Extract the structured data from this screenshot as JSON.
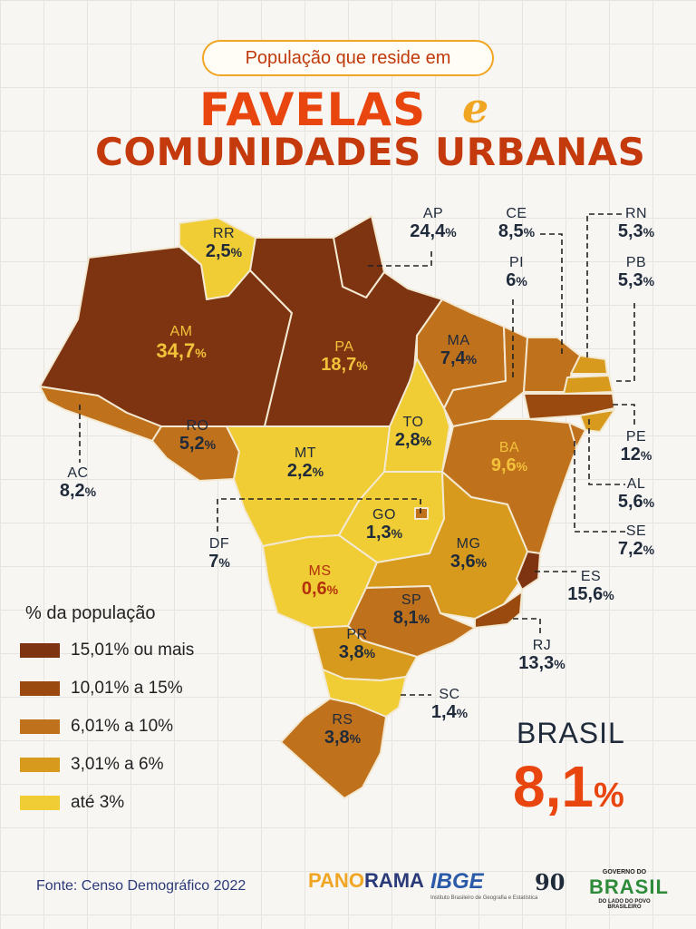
{
  "header": {
    "pre_title": "População que reside em",
    "title_line1": "FAVELAS",
    "title_connector": "e",
    "title_line2": "COMUNIDADES URBANAS"
  },
  "states": {
    "RR": {
      "code": "RR",
      "value": "2,5"
    },
    "AM": {
      "code": "AM",
      "value": "34,7"
    },
    "PA": {
      "code": "PA",
      "value": "18,7"
    },
    "AP": {
      "code": "AP",
      "value": "24,4"
    },
    "CE": {
      "code": "CE",
      "value": "8,5"
    },
    "PI": {
      "code": "PI",
      "value": "6"
    },
    "RN": {
      "code": "RN",
      "value": "5,3"
    },
    "PB": {
      "code": "PB",
      "value": "5,3"
    },
    "MA": {
      "code": "MA",
      "value": "7,4"
    },
    "PE": {
      "code": "PE",
      "value": "12"
    },
    "AL": {
      "code": "AL",
      "value": "5,6"
    },
    "SE": {
      "code": "SE",
      "value": "7,2"
    },
    "BA": {
      "code": "BA",
      "value": "9,6"
    },
    "TO": {
      "code": "TO",
      "value": "2,8"
    },
    "RO": {
      "code": "RO",
      "value": "5,2"
    },
    "AC": {
      "code": "AC",
      "value": "8,2"
    },
    "MT": {
      "code": "MT",
      "value": "2,2"
    },
    "GO": {
      "code": "GO",
      "value": "1,3"
    },
    "DF": {
      "code": "DF",
      "value": "7"
    },
    "MG": {
      "code": "MG",
      "value": "3,6"
    },
    "ES": {
      "code": "ES",
      "value": "15,6"
    },
    "MS": {
      "code": "MS",
      "value": "0,6"
    },
    "SP": {
      "code": "SP",
      "value": "8,1"
    },
    "RJ": {
      "code": "RJ",
      "value": "13,3"
    },
    "PR": {
      "code": "PR",
      "value": "3,8"
    },
    "SC": {
      "code": "SC",
      "value": "1,4"
    },
    "RS": {
      "code": "RS",
      "value": "3,8"
    }
  },
  "percent_sign": "%",
  "legend": {
    "title": "% da população",
    "items": [
      {
        "label": "15,01% ou mais",
        "color": "#7e3410"
      },
      {
        "label": "10,01% a 15%",
        "color": "#9a4a0f"
      },
      {
        "label": "6,01% a 10%",
        "color": "#c0711b"
      },
      {
        "label": "3,01% a 6%",
        "color": "#d79a1d"
      },
      {
        "label": "até 3%",
        "color": "#f0cc35"
      }
    ]
  },
  "brasil": {
    "label": "BRASIL",
    "value": "8,1",
    "unit": "%"
  },
  "source": "Fonte: Censo Demográfico 2022",
  "logos": {
    "panorama_a": "PANO",
    "panorama_b": "RAMA",
    "ibge": "IBGE",
    "ibge_sub": "Instituto Brasileiro de Geografia e Estatística",
    "ninety": "90",
    "gov_top": "GOVERNO DO",
    "gov_main": "BRASIL",
    "gov_bottom": "DO LADO DO POVO BRASILEIRO"
  },
  "colors": {
    "c15": "#7e3410",
    "c10": "#9a4a0f",
    "c6": "#c0711b",
    "c3": "#d79a1d",
    "c0": "#f0cc35",
    "accent": "#e8450f"
  }
}
